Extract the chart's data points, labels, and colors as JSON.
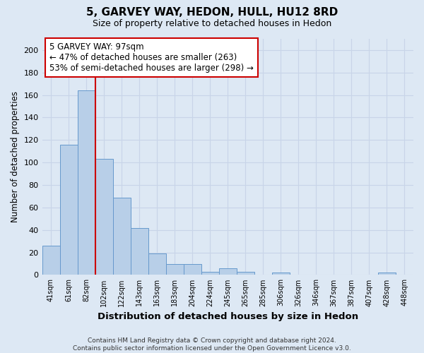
{
  "title1": "5, GARVEY WAY, HEDON, HULL, HU12 8RD",
  "title2": "Size of property relative to detached houses in Hedon",
  "xlabel": "Distribution of detached houses by size in Hedon",
  "ylabel": "Number of detached properties",
  "bar_labels": [
    "41sqm",
    "61sqm",
    "82sqm",
    "102sqm",
    "122sqm",
    "143sqm",
    "163sqm",
    "183sqm",
    "204sqm",
    "224sqm",
    "245sqm",
    "265sqm",
    "285sqm",
    "306sqm",
    "326sqm",
    "346sqm",
    "367sqm",
    "387sqm",
    "407sqm",
    "428sqm",
    "448sqm"
  ],
  "bar_values": [
    26,
    116,
    164,
    103,
    69,
    42,
    19,
    10,
    10,
    3,
    6,
    3,
    0,
    2,
    0,
    0,
    0,
    0,
    0,
    2,
    0
  ],
  "bar_color": "#b8cfe8",
  "bar_edge_color": "#6699cc",
  "grid_color": "#c8d4e8",
  "background_color": "#dde8f4",
  "vline_color": "#cc0000",
  "annotation_text": "5 GARVEY WAY: 97sqm\n← 47% of detached houses are smaller (263)\n53% of semi-detached houses are larger (298) →",
  "annotation_box_color": "#ffffff",
  "annotation_box_edge": "#cc0000",
  "ylim": [
    0,
    210
  ],
  "yticks": [
    0,
    20,
    40,
    60,
    80,
    100,
    120,
    140,
    160,
    180,
    200
  ],
  "footer": "Contains HM Land Registry data © Crown copyright and database right 2024.\nContains public sector information licensed under the Open Government Licence v3.0."
}
